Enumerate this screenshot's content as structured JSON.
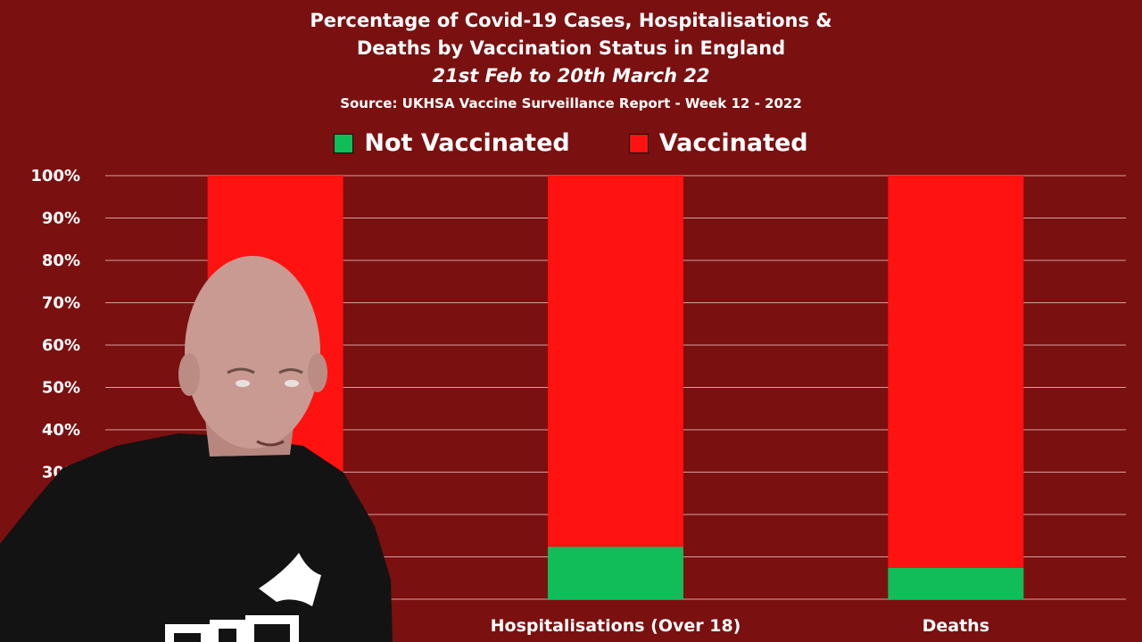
{
  "header": {
    "title_line1": "Percentage of Covid-19 Cases, Hospitalisations &",
    "title_line2": "Deaths by Vaccination Status in England",
    "date_range": "21st Feb to 20th March 22",
    "source": "Source: UKHSA Vaccine Surveillance Report - Week 12 - 2022"
  },
  "colors": {
    "background": "#7a1010",
    "not_vaccinated": "#10bd59",
    "vaccinated": "#ff1210",
    "grid": "#d6a0a0"
  },
  "chart_data": {
    "type": "bar",
    "stacked": true,
    "categories": [
      "",
      "Hospitalisations (Over 18)",
      "Deaths"
    ],
    "series": [
      {
        "name": "Not Vaccinated",
        "values": [
          null,
          12.4,
          7.4
        ]
      },
      {
        "name": "Vaccinated",
        "values": [
          null,
          87.6,
          92.6
        ]
      }
    ],
    "ylim": [
      0,
      100
    ],
    "yticks": [
      "100%",
      "90%",
      "80%",
      "70%",
      "60%",
      "50%",
      "40%",
      "30%"
    ],
    "grid": true,
    "legend_position": "top-center"
  }
}
